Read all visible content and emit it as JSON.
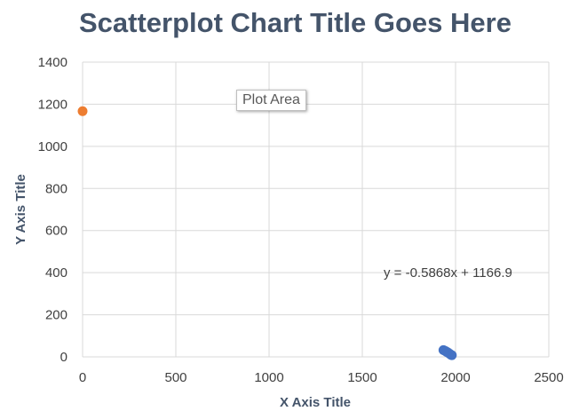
{
  "tooltip": {
    "label": "Plot Area"
  },
  "chart_data": {
    "type": "scatter",
    "title": "Scatterplot Chart Title Goes Here",
    "xlabel": "X Axis Title",
    "ylabel": "Y Axis Title",
    "xlim": [
      0,
      2500
    ],
    "ylim": [
      0,
      1400
    ],
    "x_ticks": [
      0,
      500,
      1000,
      1500,
      2000,
      2500
    ],
    "y_ticks": [
      0,
      200,
      400,
      600,
      800,
      1000,
      1200,
      1400
    ],
    "grid": true,
    "series": [
      {
        "color": "#4472c4",
        "points": [
          {
            "x": 1935,
            "y": 32
          },
          {
            "x": 1945,
            "y": 28
          },
          {
            "x": 1952,
            "y": 24
          },
          {
            "x": 1960,
            "y": 20
          },
          {
            "x": 1968,
            "y": 15
          },
          {
            "x": 1975,
            "y": 10
          },
          {
            "x": 1980,
            "y": 8
          }
        ]
      },
      {
        "color": "#ed7d31",
        "points": [
          {
            "x": 0,
            "y": 1166.9
          }
        ]
      }
    ],
    "trendline_label": "y = -0.5868x + 1166.9"
  }
}
